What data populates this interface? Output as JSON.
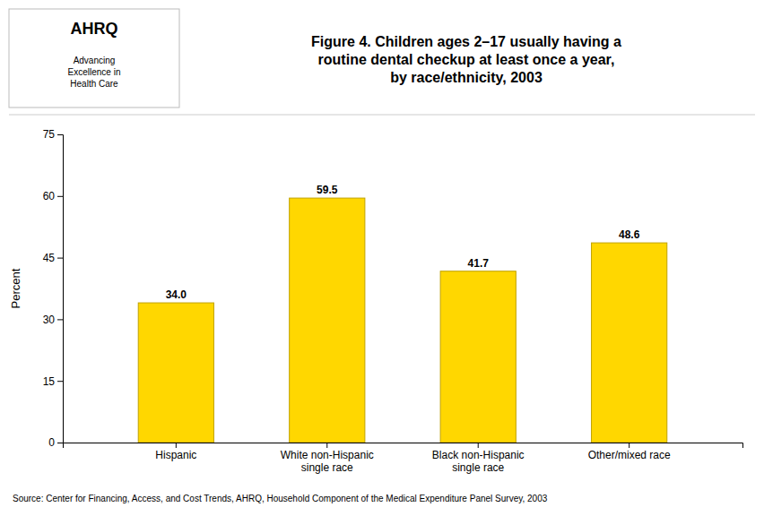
{
  "chart_data": {
    "type": "bar",
    "title": "Figure 4. Children ages 2–17 usually having a\nroutine dental checkup at least once a year,\nby race/ethnicity, 2003",
    "categories": [
      "Hispanic",
      "White non-Hispanic\nsingle race",
      "Black non-Hispanic\nsingle race",
      "Other/mixed race"
    ],
    "values": [
      34.0,
      59.5,
      41.7,
      48.6
    ],
    "value_labels": [
      "34.0",
      "59.5",
      "41.7",
      "48.6"
    ],
    "data_labels": true,
    "color": "#FFD700",
    "ylabel": "Percent",
    "ylim": [
      0,
      75
    ],
    "yticks": [
      0,
      15,
      30,
      45,
      60,
      75
    ],
    "grid": false,
    "annotations": [
      "AHRQ",
      "Advancing\nExcellence in\nHealth Care",
      "Source:  Center for Financing, Access, and Cost Trends, AHRQ, Household Component of the Medical Expenditure Panel Survey, 2003"
    ]
  }
}
